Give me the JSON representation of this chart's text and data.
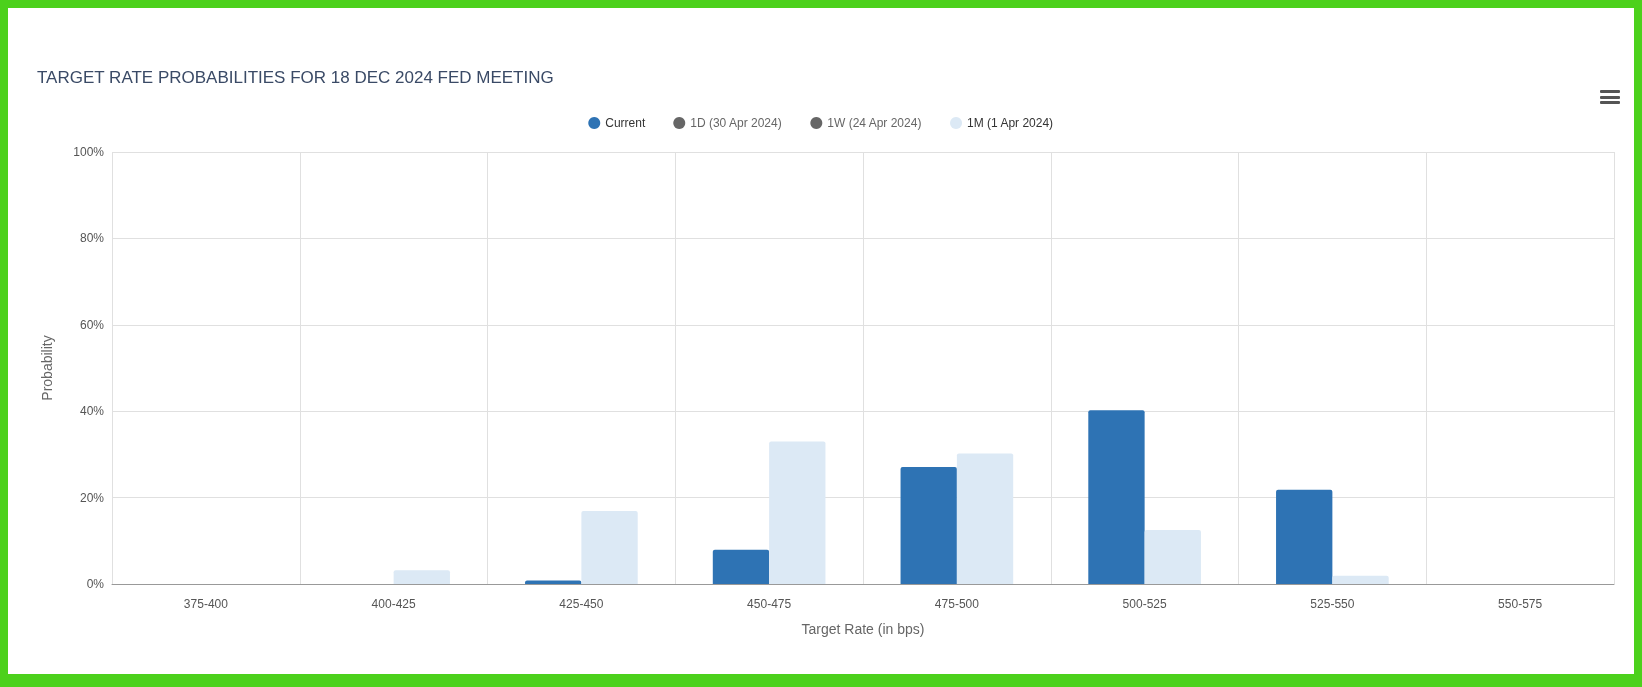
{
  "chart_data": {
    "type": "bar",
    "title": "TARGET RATE PROBABILITIES FOR 18 DEC 2024 FED MEETING",
    "xlabel": "Target Rate (in bps)",
    "ylabel": "Probability",
    "categories": [
      "375-400",
      "400-425",
      "425-450",
      "450-475",
      "475-500",
      "500-525",
      "525-550",
      "550-575"
    ],
    "series": [
      {
        "name": "Current",
        "color": "#2e73b4",
        "values": [
          0,
          0,
          0.8,
          7.9,
          27.1,
          40.2,
          21.8,
          0
        ]
      },
      {
        "name": "1D (30 Apr 2024)",
        "color": "#666666",
        "values": [
          null,
          null,
          null,
          null,
          null,
          null,
          null,
          null
        ]
      },
      {
        "name": "1W (24 Apr 2024)",
        "color": "#666666",
        "values": [
          null,
          null,
          null,
          null,
          null,
          null,
          null,
          null
        ]
      },
      {
        "name": "1M (1 Apr 2024)",
        "color": "#dce9f5",
        "values": [
          0,
          3.2,
          16.9,
          33.0,
          30.2,
          12.5,
          1.9,
          0
        ]
      }
    ],
    "ylim": [
      0,
      100
    ],
    "yticks": [
      {
        "value": 0,
        "label": "0%"
      },
      {
        "value": 20,
        "label": "20%"
      },
      {
        "value": 40,
        "label": "40%"
      },
      {
        "value": 60,
        "label": "60%"
      },
      {
        "value": 80,
        "label": "80%"
      },
      {
        "value": 100,
        "label": "100%"
      }
    ],
    "grid": true,
    "legend": "top"
  }
}
